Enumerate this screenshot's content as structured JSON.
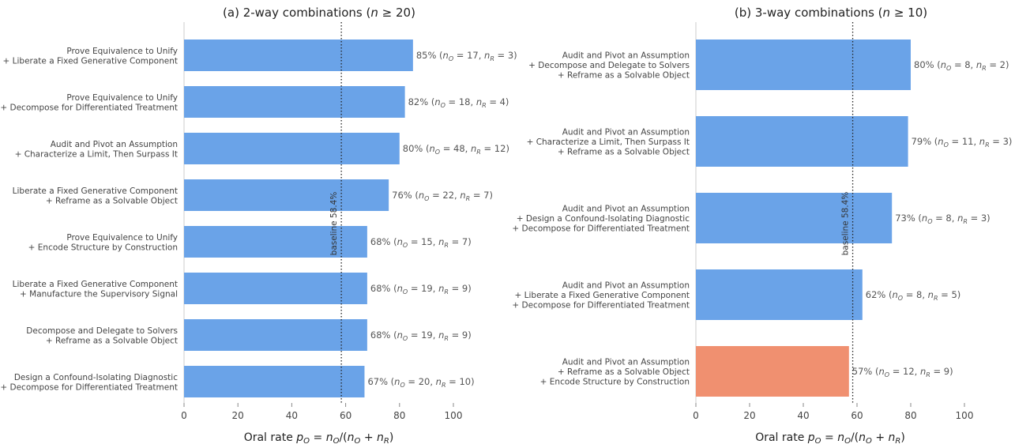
{
  "chart_data": [
    {
      "type": "bar",
      "orientation": "horizontal",
      "title": "(a) 2-way combinations (n ≥ 20)",
      "title_parts": [
        "(a) 2-way combinations (",
        "n",
        " ≥ 20)"
      ],
      "xlabel": "Oral rate p_O = n_O/(n_O + n_R)",
      "xlim": [
        0,
        100
      ],
      "xticks": [
        0,
        20,
        40,
        60,
        80,
        100
      ],
      "baseline": {
        "value": 58.4,
        "label": "baseline 58.4%"
      },
      "grid": false,
      "legend": "none",
      "bars": [
        {
          "label": [
            "Prove Equivalence to Unify",
            "+ Liberate a Fixed Generative Component"
          ],
          "value": 85,
          "pct": "85%",
          "nO": "17",
          "nR": "3",
          "color": "#6aa3e8"
        },
        {
          "label": [
            "Prove Equivalence to Unify",
            "+ Decompose for Differentiated Treatment"
          ],
          "value": 82,
          "pct": "82%",
          "nO": "18",
          "nR": "4",
          "color": "#6aa3e8"
        },
        {
          "label": [
            "Audit and Pivot an Assumption",
            "+ Characterize a Limit, Then Surpass It"
          ],
          "value": 80,
          "pct": "80%",
          "nO": "48",
          "nR": "12",
          "color": "#6aa3e8"
        },
        {
          "label": [
            "Liberate a Fixed Generative Component",
            "+ Reframe as a Solvable Object"
          ],
          "value": 76,
          "pct": "76%",
          "nO": "22",
          "nR": "7",
          "color": "#6aa3e8"
        },
        {
          "label": [
            "Prove Equivalence to Unify",
            "+ Encode Structure by Construction"
          ],
          "value": 68,
          "pct": "68%",
          "nO": "15",
          "nR": "7",
          "color": "#6aa3e8"
        },
        {
          "label": [
            "Liberate a Fixed Generative Component",
            "+ Manufacture the Supervisory Signal"
          ],
          "value": 68,
          "pct": "68%",
          "nO": "19",
          "nR": "9",
          "color": "#6aa3e8"
        },
        {
          "label": [
            "Decompose and Delegate to Solvers",
            "+ Reframe as a Solvable Object"
          ],
          "value": 68,
          "pct": "68%",
          "nO": "19",
          "nR": "9",
          "color": "#6aa3e8"
        },
        {
          "label": [
            "Design a Confound-Isolating Diagnostic",
            "+ Decompose for Differentiated Treatment"
          ],
          "value": 67,
          "pct": "67%",
          "nO": "20",
          "nR": "10",
          "color": "#6aa3e8"
        }
      ]
    },
    {
      "type": "bar",
      "orientation": "horizontal",
      "title": "(b) 3-way combinations (n ≥ 10)",
      "title_parts": [
        "(b) 3-way combinations (",
        "n",
        " ≥ 10)"
      ],
      "xlabel": "Oral rate p_O = n_O/(n_O + n_R)",
      "xlim": [
        0,
        100
      ],
      "xticks": [
        0,
        20,
        40,
        60,
        80,
        100
      ],
      "baseline": {
        "value": 58.4,
        "label": "baseline 58.4%"
      },
      "grid": false,
      "legend": "none",
      "bars": [
        {
          "label": [
            "Audit and Pivot an Assumption",
            "+ Decompose and Delegate to Solvers",
            "+ Reframe as a Solvable Object"
          ],
          "value": 80,
          "pct": "80%",
          "nO": "8",
          "nR": "2",
          "color": "#6aa3e8"
        },
        {
          "label": [
            "Audit and Pivot an Assumption",
            "+ Characterize a Limit, Then Surpass It",
            "+ Reframe as a Solvable Object"
          ],
          "value": 79,
          "pct": "79%",
          "nO": "11",
          "nR": "3",
          "color": "#6aa3e8"
        },
        {
          "label": [
            "Audit and Pivot an Assumption",
            "+ Design a Confound-Isolating Diagnostic",
            "+ Decompose for Differentiated Treatment"
          ],
          "value": 73,
          "pct": "73%",
          "nO": "8",
          "nR": "3",
          "color": "#6aa3e8"
        },
        {
          "label": [
            "Audit and Pivot an Assumption",
            "+ Liberate a Fixed Generative Component",
            "+ Decompose for Differentiated Treatment"
          ],
          "value": 62,
          "pct": "62%",
          "nO": "8",
          "nR": "5",
          "color": "#6aa3e8"
        },
        {
          "label": [
            "Audit and Pivot an Assumption",
            "+ Reframe as a Solvable Object",
            "+ Encode Structure by Construction"
          ],
          "value": 57,
          "pct": "57%",
          "nO": "12",
          "nR": "9",
          "color": "#f09070"
        }
      ]
    }
  ]
}
